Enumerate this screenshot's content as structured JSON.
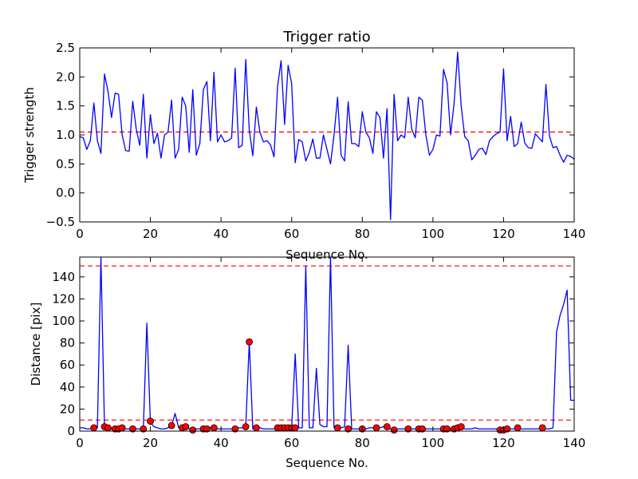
{
  "chart_data": [
    {
      "type": "line",
      "title": "Trigger ratio",
      "xlabel": "Sequence No.",
      "ylabel": "Trigger strength",
      "xlim": [
        0,
        140
      ],
      "ylim": [
        -0.5,
        2.5
      ],
      "xticks": [
        "0",
        "20",
        "40",
        "60",
        "80",
        "100",
        "120",
        "140"
      ],
      "yticks": [
        "−0.5",
        "0.0",
        "0.5",
        "1.0",
        "1.5",
        "2.0",
        "2.5"
      ],
      "line_color": "#0000ff",
      "threshold_color": "#ff0000",
      "threshold": 1.05,
      "series": [
        {
          "x": [
            0,
            1,
            2,
            3,
            4,
            5,
            6,
            7,
            8,
            9,
            10,
            11,
            12,
            13,
            14,
            15,
            16,
            17,
            18,
            19,
            20,
            21,
            22,
            23,
            24,
            25,
            26,
            27,
            28,
            29,
            30,
            31,
            32,
            33,
            34,
            35,
            36,
            37,
            38,
            39,
            40,
            41,
            42,
            43,
            44,
            45,
            46,
            47,
            48,
            49,
            50,
            51,
            52,
            53,
            54,
            55,
            56,
            57,
            58,
            59,
            60,
            61,
            62,
            63,
            64,
            65,
            66,
            67,
            68,
            69,
            70,
            71,
            72,
            73,
            74,
            75,
            76,
            77,
            78,
            79,
            80,
            81,
            82,
            83,
            84,
            85,
            86,
            87,
            88,
            89,
            90,
            91,
            92,
            93,
            94,
            95,
            96,
            97,
            98,
            99,
            100,
            101,
            102,
            103,
            104,
            105,
            106,
            107,
            108,
            109,
            110,
            111,
            112,
            113,
            114,
            115,
            116,
            117,
            118,
            119,
            120,
            121,
            122,
            123,
            124,
            125,
            126,
            127,
            128,
            129,
            130,
            131,
            132,
            133,
            134,
            135,
            136,
            137,
            138,
            139,
            140
          ],
          "values": [
            0.97,
            0.95,
            0.75,
            0.9,
            1.55,
            0.9,
            0.68,
            2.05,
            1.75,
            1.3,
            1.72,
            1.7,
            1.0,
            0.73,
            0.72,
            1.58,
            1.1,
            0.82,
            1.7,
            0.6,
            1.35,
            0.85,
            1.03,
            0.6,
            1.0,
            1.05,
            1.6,
            0.6,
            0.75,
            1.65,
            1.5,
            0.7,
            1.78,
            0.65,
            0.85,
            1.78,
            1.92,
            0.9,
            2.08,
            0.88,
            1.0,
            0.88,
            0.9,
            0.95,
            2.15,
            0.78,
            0.82,
            2.3,
            1.08,
            0.64,
            1.48,
            1.05,
            0.88,
            0.9,
            0.83,
            0.62,
            1.83,
            2.28,
            1.18,
            2.2,
            1.88,
            0.52,
            0.92,
            0.88,
            0.55,
            0.7,
            0.93,
            0.6,
            0.6,
            1.0,
            0.75,
            0.5,
            1.0,
            1.65,
            0.65,
            0.55,
            1.57,
            0.85,
            0.85,
            0.8,
            1.4,
            1.05,
            0.95,
            0.68,
            1.4,
            1.3,
            0.6,
            1.45,
            -0.46,
            1.7,
            0.9,
            1.0,
            0.95,
            1.65,
            1.1,
            0.95,
            1.65,
            1.6,
            1.0,
            0.65,
            0.75,
            1.0,
            0.98,
            2.13,
            1.9,
            1.0,
            1.55,
            2.43,
            1.5,
            0.97,
            0.9,
            0.57,
            0.65,
            0.75,
            0.77,
            0.66,
            0.9,
            0.97,
            1.02,
            1.05,
            2.14,
            0.9,
            1.32,
            0.8,
            0.85,
            1.22,
            0.86,
            0.78,
            0.77,
            1.02,
            0.95,
            0.88,
            1.87,
            0.98,
            0.78,
            0.8,
            0.65,
            0.53,
            0.65,
            0.63,
            0.58
          ]
        }
      ]
    },
    {
      "type": "line",
      "xlabel": "Sequence No.",
      "ylabel": "Distance [pix]",
      "xlim": [
        0,
        140
      ],
      "ylim": [
        0,
        158
      ],
      "xticks": [
        "0",
        "20",
        "40",
        "60",
        "80",
        "100",
        "120",
        "140"
      ],
      "yticks": [
        "0",
        "20",
        "40",
        "60",
        "80",
        "100",
        "120",
        "140"
      ],
      "line_color": "#0000ff",
      "marker_color": "#ff0000",
      "threshold_color": "#ff0000",
      "thresholds": [
        10,
        150
      ],
      "series": [
        {
          "x": [
            0,
            1,
            2,
            3,
            4,
            5,
            6,
            7,
            8,
            9,
            10,
            11,
            12,
            13,
            14,
            15,
            16,
            17,
            18,
            19,
            20,
            21,
            22,
            23,
            24,
            25,
            26,
            27,
            28,
            29,
            30,
            31,
            32,
            33,
            34,
            35,
            36,
            37,
            38,
            39,
            40,
            41,
            42,
            43,
            44,
            45,
            46,
            47,
            48,
            49,
            50,
            51,
            52,
            53,
            54,
            55,
            56,
            57,
            58,
            59,
            60,
            61,
            62,
            63,
            64,
            65,
            66,
            67,
            68,
            69,
            70,
            71,
            72,
            73,
            74,
            75,
            76,
            77,
            78,
            79,
            80,
            81,
            82,
            83,
            84,
            85,
            86,
            87,
            88,
            89,
            90,
            91,
            92,
            93,
            94,
            95,
            96,
            97,
            98,
            99,
            100,
            101,
            102,
            103,
            104,
            105,
            106,
            107,
            108,
            109,
            110,
            111,
            112,
            113,
            114,
            115,
            116,
            117,
            118,
            119,
            120,
            121,
            122,
            123,
            124,
            125,
            126,
            127,
            128,
            129,
            130,
            131,
            132,
            133,
            134,
            135,
            136,
            137,
            138,
            139,
            140
          ],
          "values": [
            3,
            3,
            2,
            2,
            3,
            3,
            160,
            4,
            3,
            2,
            2,
            3,
            2,
            2,
            2,
            3,
            2,
            2,
            2,
            98,
            8,
            4,
            3,
            2,
            2,
            3,
            5,
            16,
            3,
            3,
            4,
            2,
            2,
            2,
            2,
            2,
            2,
            3,
            3,
            2,
            2,
            2,
            2,
            2,
            2,
            3,
            3,
            4,
            81,
            2,
            3,
            3,
            2,
            2,
            2,
            2,
            3,
            3,
            3,
            3,
            3,
            70,
            3,
            3,
            150,
            3,
            3,
            57,
            6,
            4,
            4,
            160,
            3,
            3,
            3,
            4,
            78,
            2,
            2,
            2,
            2,
            2,
            3,
            3,
            3,
            3,
            4,
            3,
            2,
            1,
            2,
            2,
            2,
            2,
            2,
            2,
            2,
            2,
            2,
            2,
            2,
            2,
            2,
            2,
            2,
            2,
            2,
            3,
            4,
            2,
            2,
            2,
            3,
            2,
            2,
            2,
            2,
            2,
            2,
            2,
            2,
            2,
            2,
            2,
            2,
            2,
            2,
            2,
            2,
            2,
            2,
            2,
            2,
            2,
            3,
            90,
            105,
            115,
            128,
            28,
            28
          ]
        },
        {
          "name": "",
          "marker": "circle",
          "x": [
            4,
            7,
            8,
            10,
            11,
            12,
            15,
            18,
            20,
            26,
            29,
            30,
            32,
            35,
            36,
            38,
            44,
            47,
            48,
            50,
            56,
            57,
            58,
            59,
            60,
            61,
            73,
            76,
            80,
            84,
            87,
            89,
            93,
            96,
            97,
            103,
            104,
            106,
            107,
            108,
            119,
            120,
            121,
            124,
            131
          ],
          "values": [
            3,
            4,
            3,
            2,
            2,
            3,
            2,
            2,
            9,
            5,
            3,
            4,
            1,
            2,
            2,
            3,
            2,
            4,
            81,
            3,
            3,
            3,
            3,
            3,
            3,
            3,
            3,
            2,
            2,
            3,
            4,
            1,
            2,
            2,
            2,
            2,
            2,
            2,
            3,
            4,
            1,
            1,
            2,
            3,
            3
          ]
        }
      ]
    }
  ]
}
